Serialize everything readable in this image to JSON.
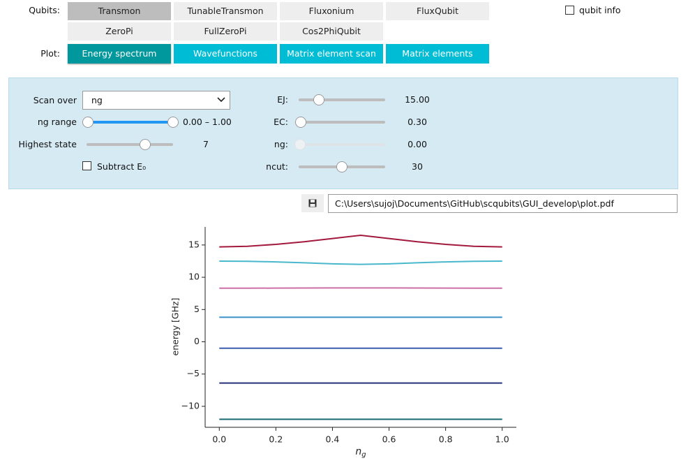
{
  "qubits": {
    "label": "Qubits:",
    "options": [
      "Transmon",
      "TunableTransmon",
      "Fluxonium",
      "FluxQubit",
      "ZeroPi",
      "FullZeroPi",
      "Cos2PhiQubit"
    ],
    "selected_index": 0
  },
  "qubit_info": {
    "label": "qubit info",
    "checked": false
  },
  "plot": {
    "label": "Plot:",
    "options": [
      "Energy spectrum",
      "Wavefunctions",
      "Matrix element scan",
      "Matrix elements"
    ],
    "selected_index": 0
  },
  "controls": {
    "scan_over": {
      "label": "Scan over",
      "value": "ng"
    },
    "ng_range": {
      "label": "ng range",
      "value": "0.00 – 1.00"
    },
    "highest_state": {
      "label": "Highest state",
      "value": "7"
    },
    "subtract_e0": {
      "label": "Subtract E₀",
      "checked": false
    },
    "ej": {
      "label": "EJ:",
      "value": "15.00"
    },
    "ec": {
      "label": "EC:",
      "value": "0.30"
    },
    "ng": {
      "label": "ng:",
      "value": "0.00"
    },
    "ncut": {
      "label": "ncut:",
      "value": "30"
    }
  },
  "save": {
    "path": "C:\\Users\\sujoj\\Documents\\GitHub\\scqubits\\GUI_develop\\plot.pdf"
  },
  "chart_data": {
    "type": "line",
    "ylabel": "energy [GHz]",
    "xlabel": {
      "symbol": "n",
      "subscript": "g"
    },
    "x": [
      0,
      0.1,
      0.2,
      0.3,
      0.4,
      0.5,
      0.6,
      0.7,
      0.8,
      0.9,
      1
    ],
    "series": [
      {
        "color": "#186a72",
        "values": [
          -12.0,
          -12.0,
          -12.0,
          -12.0,
          -12.0,
          -12.0,
          -12.0,
          -12.0,
          -12.0,
          -12.0,
          -12.0
        ]
      },
      {
        "color": "#27307a",
        "values": [
          -6.4,
          -6.4,
          -6.4,
          -6.4,
          -6.4,
          -6.4,
          -6.4,
          -6.4,
          -6.4,
          -6.4,
          -6.4
        ]
      },
      {
        "color": "#3a5dae",
        "values": [
          -1.0,
          -1.0,
          -1.0,
          -1.0,
          -1.0,
          -1.0,
          -1.0,
          -1.0,
          -1.0,
          -1.0,
          -1.0
        ]
      },
      {
        "color": "#3a8fc6",
        "values": [
          3.8,
          3.8,
          3.8,
          3.8,
          3.8,
          3.8,
          3.8,
          3.8,
          3.8,
          3.8,
          3.8
        ]
      },
      {
        "color": "#cc6fa8",
        "values": [
          8.3,
          8.3,
          8.32,
          8.33,
          8.35,
          8.35,
          8.35,
          8.33,
          8.32,
          8.3,
          8.3
        ]
      },
      {
        "color": "#4ab8cc",
        "values": [
          12.5,
          12.47,
          12.38,
          12.24,
          12.08,
          12.0,
          12.08,
          12.24,
          12.38,
          12.47,
          12.5
        ]
      },
      {
        "color": "#a3193d",
        "values": [
          14.7,
          14.8,
          15.1,
          15.5,
          16.0,
          16.5,
          16.0,
          15.5,
          15.1,
          14.8,
          14.7
        ]
      }
    ],
    "xlim": [
      -0.05,
      1.05
    ],
    "ylim": [
      -13.25,
      17.8
    ],
    "xticks": [
      {
        "value": 0,
        "label": "0.0"
      },
      0.2,
      0.4,
      0.6,
      0.8,
      {
        "value": 1,
        "label": "1.0"
      }
    ],
    "yticks": [
      {
        "value": -10,
        "label": "−10"
      },
      {
        "value": -5,
        "label": "−5"
      },
      0,
      5,
      10,
      15
    ]
  }
}
